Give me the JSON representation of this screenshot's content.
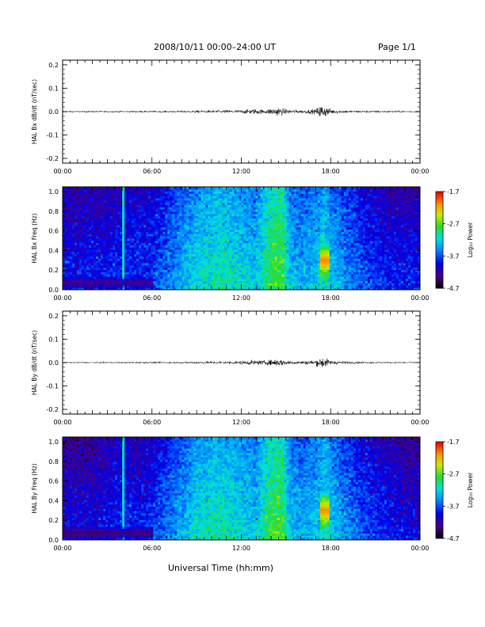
{
  "header": {
    "title": "2008/10/11   00:00–24:00 UT",
    "page": "Page 1/1"
  },
  "footer": {
    "xlabel": "Universal Time (hh:mm)"
  },
  "colorbar": {
    "label": "Log₁₀ Power",
    "ticks": [
      "-1.7",
      "-2.7",
      "-3.7",
      "-4.7"
    ],
    "range": [
      -4.7,
      -1.7
    ]
  },
  "chart_data": [
    {
      "type": "line",
      "ylabel": "HAL Bx dB/dt (nT/sec)",
      "ylim": [
        -0.22,
        0.22
      ],
      "yticks": [
        "0.2",
        "0.1",
        "0.0",
        "-0.1",
        "-0.2"
      ],
      "xlim": [
        0,
        24
      ],
      "xticks": [
        "00:00",
        "06:00",
        "12:00",
        "18:00",
        "00:00"
      ],
      "series": [
        {
          "x": [
            0,
            2,
            4,
            6,
            8,
            9,
            10,
            11,
            12,
            12.5,
            13,
            13.5,
            14,
            14.5,
            15,
            16,
            17,
            17.3,
            17.6,
            18,
            19,
            20,
            22,
            24
          ],
          "envelope": [
            0.004,
            0.004,
            0.004,
            0.004,
            0.005,
            0.006,
            0.007,
            0.008,
            0.009,
            0.012,
            0.014,
            0.01,
            0.016,
            0.022,
            0.012,
            0.008,
            0.012,
            0.035,
            0.028,
            0.012,
            0.007,
            0.006,
            0.005,
            0.004
          ]
        }
      ]
    },
    {
      "type": "heatmap",
      "ylabel": "HAL Bx Freq (Hz)",
      "ylim": [
        0,
        1.05
      ],
      "yticks": [
        "1.0",
        "0.8",
        "0.6",
        "0.4",
        "0.2",
        "0.0"
      ],
      "xlim": [
        0,
        24
      ],
      "xticks": [
        "00:00",
        "06:00",
        "12:00",
        "18:00",
        "00:00"
      ],
      "zlim": [
        -4.7,
        -1.7
      ],
      "time_profile": {
        "x": [
          0,
          1,
          2,
          3,
          4,
          5,
          6,
          7,
          8,
          9,
          10,
          11,
          12,
          13,
          13.8,
          14.2,
          14.8,
          15.2,
          16,
          17,
          17.6,
          18,
          19,
          20,
          21,
          22,
          23,
          24
        ],
        "level": [
          -3.9,
          -3.9,
          -3.9,
          -3.9,
          -3.8,
          -3.8,
          -3.8,
          -3.6,
          -3.4,
          -3.2,
          -3.1,
          -3.1,
          -3.2,
          -3.3,
          -2.9,
          -2.8,
          -2.8,
          -3.3,
          -3.4,
          -3.3,
          -3.1,
          -3.3,
          -3.5,
          -3.7,
          -3.8,
          -3.9,
          -3.9,
          -3.9
        ]
      },
      "features": [
        {
          "name": "vertical line",
          "t": 4.1,
          "level": -3.1
        },
        {
          "name": "pc1 burst",
          "t": [
            17.3,
            17.9
          ],
          "f": [
            0.1,
            0.5
          ],
          "level": -1.9
        },
        {
          "name": "low band depletion",
          "t": [
            0,
            6
          ],
          "f": [
            0,
            0.15
          ],
          "level": -4.4
        }
      ]
    },
    {
      "type": "line",
      "ylabel": "HAL By dB/dt (nT/sec)",
      "ylim": [
        -0.22,
        0.22
      ],
      "yticks": [
        "0.2",
        "0.1",
        "0.0",
        "-0.1",
        "-0.2"
      ],
      "xlim": [
        0,
        24
      ],
      "xticks": [
        "00:00",
        "06:00",
        "12:00",
        "18:00",
        "00:00"
      ],
      "series": [
        {
          "x": [
            0,
            2,
            4,
            6,
            8,
            9,
            10,
            11,
            12,
            12.5,
            13,
            13.5,
            14,
            14.5,
            15,
            16,
            17,
            17.3,
            17.6,
            18,
            19,
            20,
            22,
            24
          ],
          "envelope": [
            0.003,
            0.003,
            0.004,
            0.004,
            0.005,
            0.006,
            0.007,
            0.008,
            0.009,
            0.011,
            0.012,
            0.01,
            0.014,
            0.02,
            0.011,
            0.008,
            0.012,
            0.03,
            0.025,
            0.011,
            0.007,
            0.005,
            0.004,
            0.003
          ]
        }
      ]
    },
    {
      "type": "heatmap",
      "ylabel": "HAL By Freq (Hz)",
      "ylim": [
        0,
        1.05
      ],
      "yticks": [
        "1.0",
        "0.8",
        "0.6",
        "0.4",
        "0.2",
        "0.0"
      ],
      "xlim": [
        0,
        24
      ],
      "xticks": [
        "00:00",
        "06:00",
        "12:00",
        "18:00",
        "00:00"
      ],
      "zlim": [
        -4.7,
        -1.7
      ],
      "time_profile": {
        "x": [
          0,
          1,
          2,
          3,
          4,
          5,
          6,
          7,
          8,
          9,
          10,
          11,
          12,
          13,
          13.8,
          14.2,
          14.8,
          15.2,
          16,
          17,
          17.6,
          18,
          19,
          20,
          21,
          22,
          23,
          24
        ],
        "level": [
          -4.0,
          -4.0,
          -4.0,
          -3.9,
          -3.8,
          -3.9,
          -3.8,
          -3.6,
          -3.4,
          -3.2,
          -3.1,
          -3.1,
          -3.2,
          -3.3,
          -2.9,
          -2.8,
          -2.8,
          -3.3,
          -3.4,
          -3.3,
          -3.1,
          -3.3,
          -3.5,
          -3.7,
          -3.8,
          -3.9,
          -4.0,
          -4.0
        ]
      },
      "features": [
        {
          "name": "vertical line",
          "t": 4.1,
          "level": -3.1
        },
        {
          "name": "pc1 burst",
          "t": [
            17.3,
            17.9
          ],
          "f": [
            0.1,
            0.5
          ],
          "level": -1.9
        },
        {
          "name": "low band depletion",
          "t": [
            0,
            6
          ],
          "f": [
            0,
            0.15
          ],
          "level": -4.5
        }
      ]
    }
  ]
}
